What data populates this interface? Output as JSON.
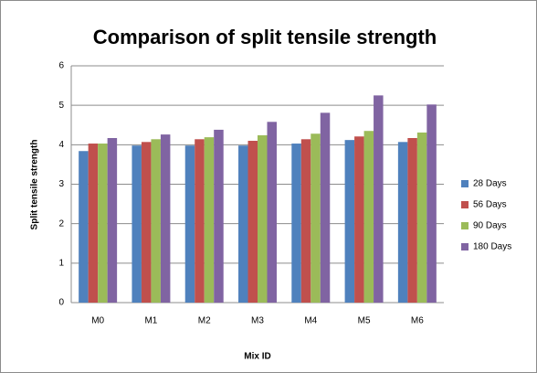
{
  "chart_data": {
    "type": "bar",
    "title": "Comparison of split tensile strength",
    "x_label": "Mix ID",
    "y_label": "Split tensile strength",
    "categories": [
      "M0",
      "M1",
      "M2",
      "M3",
      "M4",
      "M5",
      "M6"
    ],
    "series": [
      {
        "name": "28 Days",
        "color": "#4f81bd",
        "values": [
          3.84,
          3.98,
          3.98,
          3.98,
          4.03,
          4.12,
          4.07
        ]
      },
      {
        "name": "56 Days",
        "color": "#c0504d",
        "values": [
          4.03,
          4.07,
          4.14,
          4.1,
          4.14,
          4.21,
          4.17
        ]
      },
      {
        "name": "90 Days",
        "color": "#9bbb59",
        "values": [
          4.03,
          4.14,
          4.19,
          4.24,
          4.28,
          4.35,
          4.31
        ]
      },
      {
        "name": "180 Days",
        "color": "#8064a2",
        "values": [
          4.17,
          4.26,
          4.38,
          4.58,
          4.81,
          5.25,
          5.02
        ]
      }
    ],
    "ylim": [
      0,
      6
    ],
    "yticks": [
      0,
      1,
      2,
      3,
      4,
      5,
      6
    ],
    "grid": true,
    "legend": "right"
  }
}
